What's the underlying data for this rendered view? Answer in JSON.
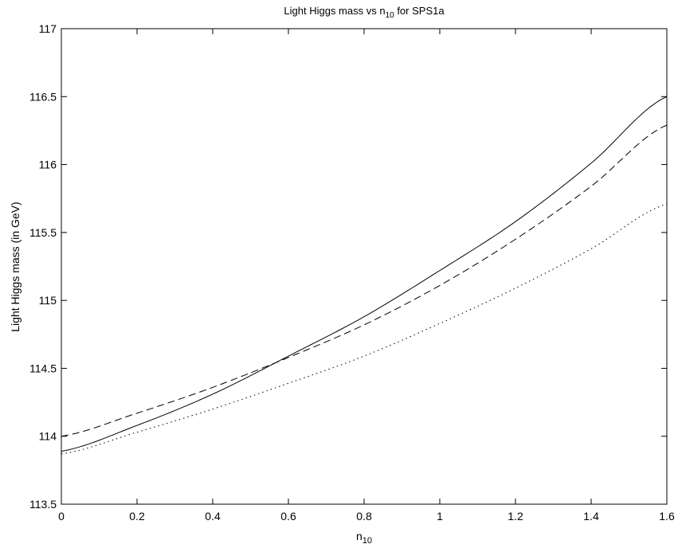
{
  "chart_data": {
    "type": "line",
    "title": {
      "main": "Light Higgs mass vs n",
      "sub": "10",
      "rest": " for SPS1a"
    },
    "xlabel": {
      "main": "n",
      "sub": "10"
    },
    "ylabel": "Light Higgs mass (in GeV)",
    "xlim": [
      0,
      1.6
    ],
    "ylim": [
      113.5,
      117
    ],
    "xticks": [
      0,
      0.2,
      0.4,
      0.6,
      0.8,
      1,
      1.2,
      1.4,
      1.6
    ],
    "xtick_labels": [
      "0",
      "0.2",
      "0.4",
      "0.6",
      "0.8",
      "1",
      "1.2",
      "1.4",
      "1.6"
    ],
    "yticks": [
      113.5,
      114,
      114.5,
      115,
      115.5,
      116,
      116.5,
      117
    ],
    "ytick_labels": [
      "113.5",
      "114",
      "114.5",
      "115",
      "115.5",
      "116",
      "116.5",
      "117"
    ],
    "grid": false,
    "x": [
      0,
      0.2,
      0.4,
      0.6,
      0.8,
      1.0,
      1.2,
      1.4,
      1.6
    ],
    "series": [
      {
        "style": "solid",
        "values": [
          113.89,
          114.08,
          114.31,
          114.59,
          114.88,
          115.22,
          115.58,
          116.01,
          116.5
        ]
      },
      {
        "style": "dashed",
        "values": [
          114.0,
          114.17,
          114.36,
          114.58,
          114.82,
          115.11,
          115.45,
          115.84,
          116.29
        ]
      },
      {
        "style": "dotted",
        "values": [
          113.87,
          114.03,
          114.2,
          114.39,
          114.59,
          114.83,
          115.09,
          115.38,
          115.71
        ]
      }
    ]
  }
}
